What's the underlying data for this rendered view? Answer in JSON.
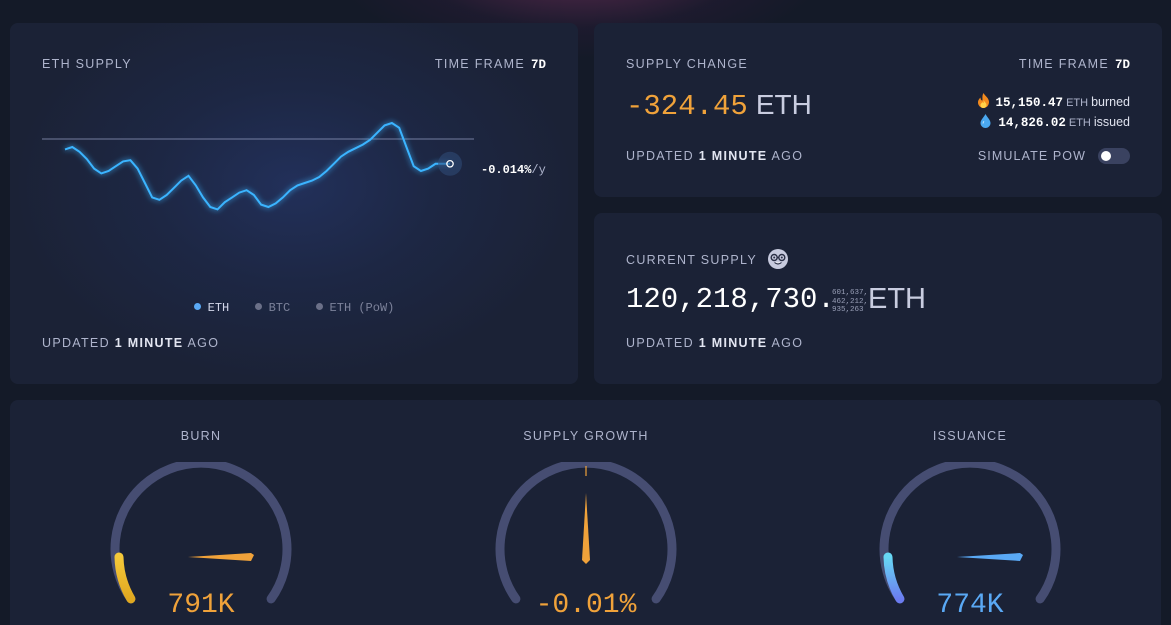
{
  "eth_supply": {
    "title": "ETH SUPPLY",
    "time_frame_label": "TIME FRAME",
    "time_frame_value": "7d",
    "rate": "-0.014%",
    "rate_unit": "/y",
    "legend": [
      {
        "label": "ETH",
        "color": "#5aa9f5",
        "active": true
      },
      {
        "label": "BTC",
        "color": "#6b7088",
        "active": false
      },
      {
        "label": "ETH (PoW)",
        "color": "#6b7088",
        "active": false
      }
    ],
    "updated_pre": "UPDATED",
    "updated_num": "1",
    "updated_unit": "MINUTE",
    "updated_post": "AGO",
    "line_color": "#3ab4ff",
    "series": [
      0.78,
      0.8,
      0.76,
      0.7,
      0.62,
      0.58,
      0.6,
      0.64,
      0.68,
      0.69,
      0.62,
      0.5,
      0.38,
      0.36,
      0.4,
      0.46,
      0.52,
      0.56,
      0.48,
      0.38,
      0.3,
      0.28,
      0.34,
      0.38,
      0.42,
      0.44,
      0.4,
      0.32,
      0.3,
      0.33,
      0.38,
      0.44,
      0.48,
      0.5,
      0.52,
      0.55,
      0.6,
      0.66,
      0.72,
      0.76,
      0.79,
      0.82,
      0.86,
      0.92,
      0.98,
      1.0,
      0.96,
      0.8,
      0.64,
      0.6,
      0.62,
      0.66,
      0.66,
      0.66
    ]
  },
  "supply_change": {
    "title": "SUPPLY CHANGE",
    "time_frame_label": "TIME FRAME",
    "time_frame_value": "7d",
    "value": "-324.45",
    "unit": "ETH",
    "burned_value": "15,150.47",
    "burned_unit": "ETH",
    "burned_word": "burned",
    "issued_value": "14,826.02",
    "issued_unit": "ETH",
    "issued_word": "issued",
    "updated_pre": "UPDATED",
    "updated_num": "1",
    "updated_unit": "MINUTE",
    "updated_post": "AGO",
    "simulate_label": "SIMULATE PoW",
    "simulate_on": false
  },
  "current_supply": {
    "title": "CURRENT SUPPLY",
    "value": "120,218,730.",
    "fraction_lines": [
      "601,637,",
      "462,212,",
      "935,263"
    ],
    "unit": "ETH",
    "updated_pre": "UPDATED",
    "updated_num": "1",
    "updated_unit": "MINUTE",
    "updated_post": "AGO"
  },
  "gauges": {
    "burn": {
      "label": "BURN",
      "value": "791K",
      "color": "#f0a23a",
      "level": 0.1
    },
    "supply_growth": {
      "label": "SUPPLY GROWTH",
      "value": "-0.01%",
      "color": "#f0a23a",
      "level": 0.5
    },
    "issuance": {
      "label": "ISSUANCE",
      "value": "774K",
      "color": "#5aa9f5",
      "level": 0.1
    }
  },
  "colors": {
    "orange": "#f0a23a",
    "blue": "#5aa9f5",
    "card": "#1b2236",
    "track": "#464d72"
  }
}
